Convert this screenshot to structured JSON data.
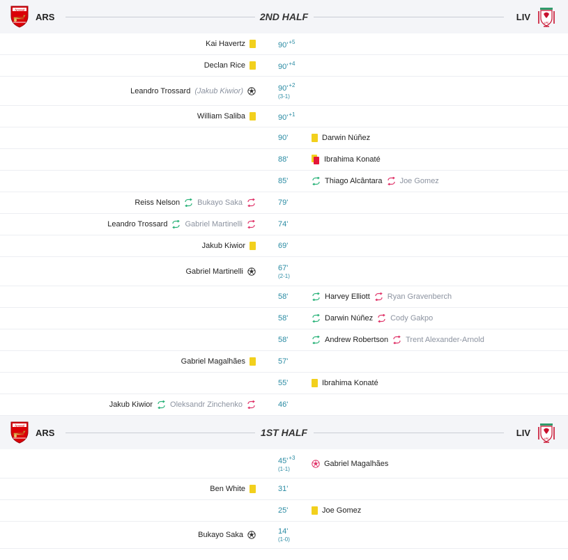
{
  "colors": {
    "minute": "#2a8ba3",
    "yellow_card": "#f2d01d",
    "red_card": "#e4163a",
    "sub_in": "#2bb37a",
    "sub_out": "#e0356a"
  },
  "teams": {
    "home": {
      "abbr": "ARS",
      "crest_text": "Arsenal"
    },
    "away": {
      "abbr": "LIV",
      "crest_text": "LFC"
    }
  },
  "second_half": {
    "title": "2ND HALF",
    "events": [
      {
        "side": "home",
        "minute": "90'",
        "extra": "+5",
        "player": "Kai Havertz",
        "type": "yellow-card"
      },
      {
        "side": "home",
        "minute": "90'",
        "extra": "+4",
        "player": "Declan Rice",
        "type": "yellow-card"
      },
      {
        "side": "home",
        "minute": "90'",
        "extra": "+2",
        "score": "(3-1)",
        "player": "Leandro Trossard",
        "assist": "(Jakub Kiwior)",
        "type": "goal"
      },
      {
        "side": "home",
        "minute": "90'",
        "extra": "+1",
        "player": "William Saliba",
        "type": "yellow-card"
      },
      {
        "side": "away",
        "minute": "90'",
        "player": "Darwin Núñez",
        "type": "yellow-card"
      },
      {
        "side": "away",
        "minute": "88'",
        "player": "Ibrahima Konaté",
        "type": "red-card"
      },
      {
        "side": "away",
        "minute": "85'",
        "player": "Thiago Alcântara",
        "player_off": "Joe Gomez",
        "type": "substitution"
      },
      {
        "side": "home",
        "minute": "79'",
        "player": "Reiss Nelson",
        "player_off": "Bukayo Saka",
        "type": "substitution"
      },
      {
        "side": "home",
        "minute": "74'",
        "player": "Leandro Trossard",
        "player_off": "Gabriel Martinelli",
        "type": "substitution"
      },
      {
        "side": "home",
        "minute": "69'",
        "player": "Jakub Kiwior",
        "type": "yellow-card"
      },
      {
        "side": "home",
        "minute": "67'",
        "score": "(2-1)",
        "player": "Gabriel Martinelli",
        "type": "goal"
      },
      {
        "side": "away",
        "minute": "58'",
        "player": "Harvey Elliott",
        "player_off": "Ryan Gravenberch",
        "type": "substitution"
      },
      {
        "side": "away",
        "minute": "58'",
        "player": "Darwin Núñez",
        "player_off": "Cody Gakpo",
        "type": "substitution"
      },
      {
        "side": "away",
        "minute": "58'",
        "player": "Andrew Robertson",
        "player_off": "Trent Alexander-Arnold",
        "type": "substitution"
      },
      {
        "side": "home",
        "minute": "57'",
        "player": "Gabriel Magalhães",
        "type": "yellow-card"
      },
      {
        "side": "away",
        "minute": "55'",
        "player": "Ibrahima Konaté",
        "type": "yellow-card"
      },
      {
        "side": "home",
        "minute": "46'",
        "player": "Jakub Kiwior",
        "player_off": "Oleksandr Zinchenko",
        "type": "substitution"
      }
    ]
  },
  "first_half": {
    "title": "1ST HALF",
    "events": [
      {
        "side": "away",
        "minute": "45'",
        "extra": "+3",
        "score": "(1-1)",
        "player": "Gabriel Magalhães",
        "type": "own-goal"
      },
      {
        "side": "home",
        "minute": "31'",
        "player": "Ben White",
        "type": "yellow-card"
      },
      {
        "side": "away",
        "minute": "25'",
        "player": "Joe Gomez",
        "type": "yellow-card"
      },
      {
        "side": "home",
        "minute": "14'",
        "score": "(1-0)",
        "player": "Bukayo Saka",
        "type": "goal"
      }
    ]
  }
}
